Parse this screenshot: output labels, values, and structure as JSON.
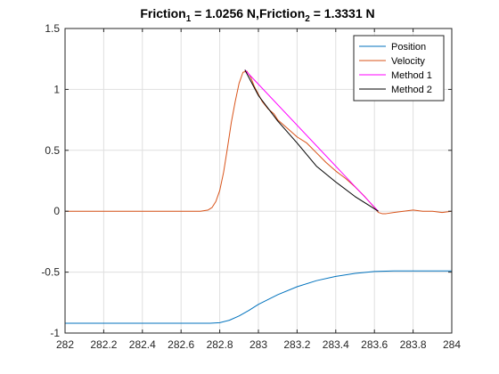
{
  "chart_data": {
    "type": "line",
    "title": {
      "part1_base": "Friction",
      "part1_sub": "1",
      "part1_rest": " = 1.0256 N,",
      "part2_base": "Friction",
      "part2_sub": "2",
      "part2_rest": " = 1.3331 N"
    },
    "xlabel": "",
    "ylabel": "",
    "xlim": [
      282,
      284
    ],
    "ylim": [
      -1,
      1.5
    ],
    "xticks": [
      282,
      282.2,
      282.4,
      282.6,
      282.8,
      283,
      283.2,
      283.4,
      283.6,
      283.8,
      284
    ],
    "xtick_labels": [
      "282",
      "282.2",
      "282.4",
      "282.6",
      "282.8",
      "283",
      "283.2",
      "283.4",
      "283.6",
      "283.8",
      "284"
    ],
    "yticks": [
      -1,
      -0.5,
      0,
      0.5,
      1,
      1.5
    ],
    "ytick_labels": [
      "-1",
      "-0.5",
      "0",
      "0.5",
      "1",
      "1.5"
    ],
    "grid": true,
    "legend_position": "top-right",
    "series": [
      {
        "name": "Position",
        "color": "#0072BD",
        "x": [
          282.0,
          282.5,
          282.75,
          282.8,
          282.85,
          282.9,
          282.95,
          283.0,
          283.1,
          283.2,
          283.3,
          283.4,
          283.5,
          283.6,
          283.7,
          283.8,
          284.0
        ],
        "y": [
          -0.92,
          -0.92,
          -0.92,
          -0.915,
          -0.895,
          -0.86,
          -0.815,
          -0.765,
          -0.685,
          -0.62,
          -0.57,
          -0.535,
          -0.51,
          -0.495,
          -0.49,
          -0.49,
          -0.49
        ]
      },
      {
        "name": "Velocity",
        "color": "#D95319",
        "x": [
          282.0,
          282.7,
          282.74,
          282.76,
          282.78,
          282.8,
          282.82,
          282.84,
          282.86,
          282.88,
          282.9,
          282.92,
          282.94,
          282.96,
          282.98,
          283.0,
          283.02,
          283.05,
          283.08,
          283.1,
          283.15,
          283.2,
          283.25,
          283.3,
          283.35,
          283.4,
          283.45,
          283.5,
          283.55,
          283.6,
          283.62,
          283.64,
          283.66,
          283.7,
          283.75,
          283.8,
          283.85,
          283.9,
          283.95,
          284.0
        ],
        "y": [
          0.0,
          0.0,
          0.01,
          0.03,
          0.08,
          0.17,
          0.32,
          0.52,
          0.73,
          0.9,
          1.05,
          1.14,
          1.15,
          1.1,
          1.02,
          0.96,
          0.9,
          0.84,
          0.8,
          0.75,
          0.68,
          0.61,
          0.56,
          0.48,
          0.4,
          0.33,
          0.27,
          0.2,
          0.12,
          0.03,
          -0.01,
          -0.02,
          -0.02,
          -0.01,
          0.0,
          0.01,
          0.0,
          0.0,
          -0.01,
          0.0
        ]
      },
      {
        "name": "Method 1",
        "color": "#FF00FF",
        "x": [
          282.93,
          283.62
        ],
        "y": [
          1.16,
          0.0
        ]
      },
      {
        "name": "Method 2",
        "color": "#000000",
        "x": [
          282.93,
          283.0,
          283.1,
          283.2,
          283.3,
          283.4,
          283.5,
          283.62
        ],
        "y": [
          1.16,
          0.95,
          0.74,
          0.56,
          0.37,
          0.24,
          0.12,
          0.0
        ]
      }
    ]
  }
}
